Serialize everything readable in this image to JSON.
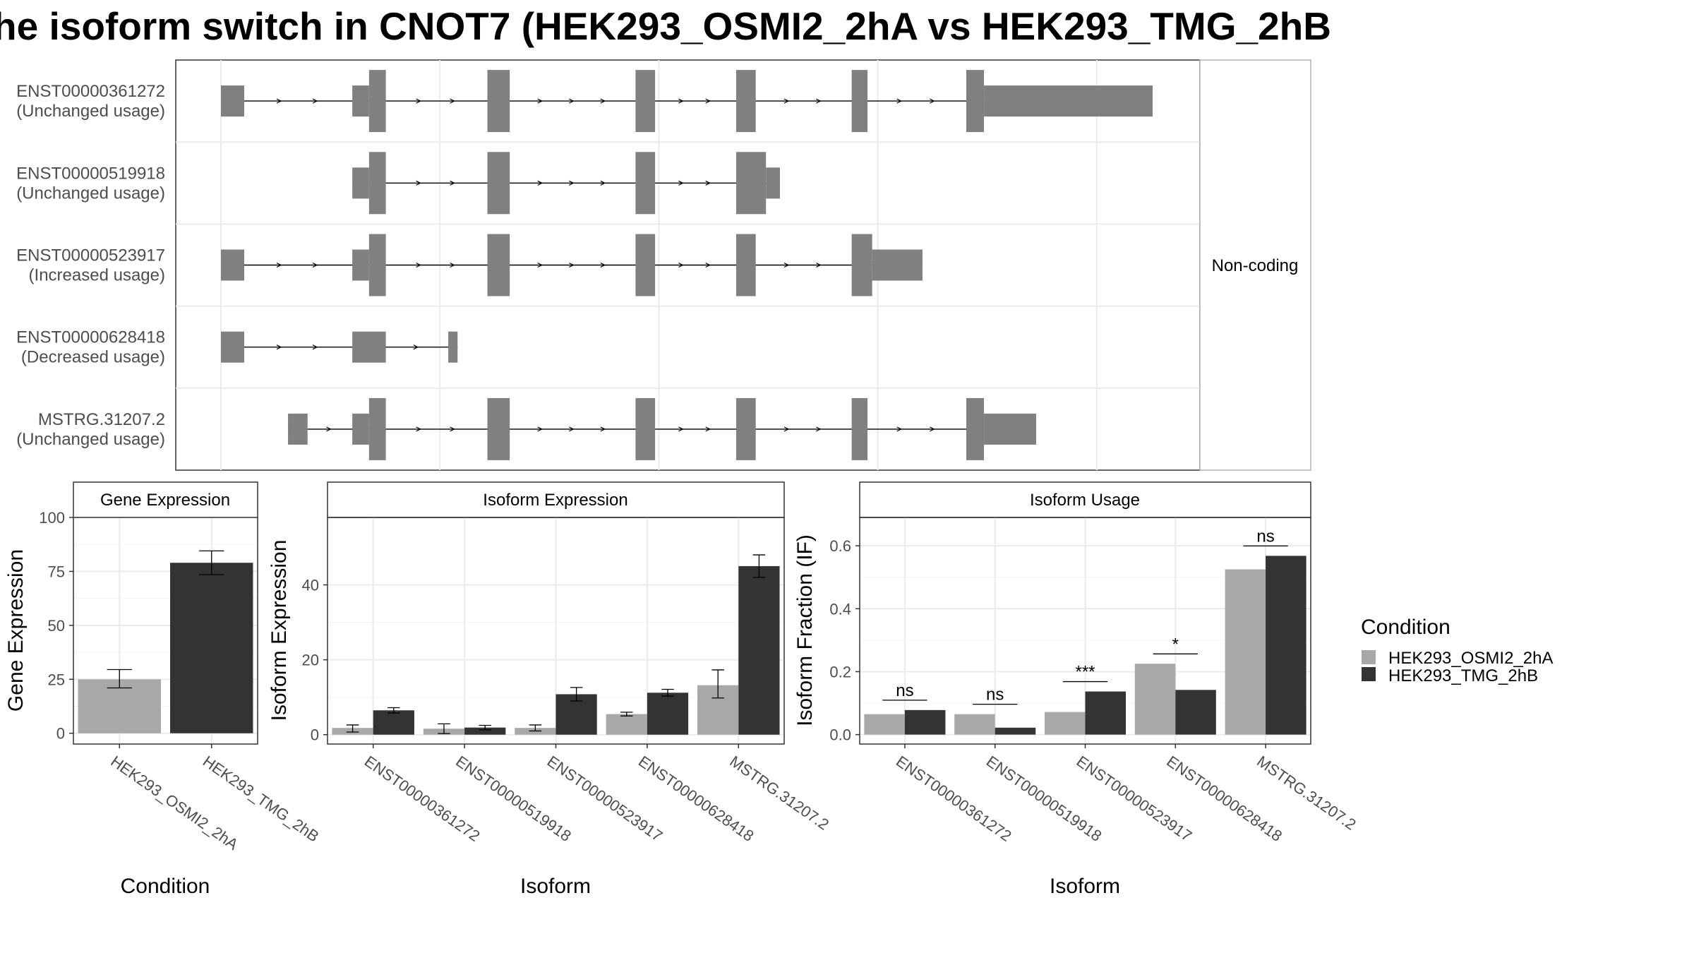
{
  "chart_data": [
    {
      "type": "gene_structure",
      "title": "he isoform switch in CNOT7 (HEK293_OSMI2_2hA vs HEK293_TMG_2hB",
      "strip_label": "Non-coding",
      "colors": {
        "exon": "#808080",
        "panel_border": "#333333",
        "grid": "#ebebeb"
      },
      "isoforms": [
        {
          "id": "ENST00000361272",
          "usage": "(Unchanged usage)",
          "exons": [
            {
              "start": 0.0,
              "end": 2.5,
              "height": "utr"
            },
            {
              "start": 14.1,
              "end": 15.9,
              "height": "utr"
            },
            {
              "start": 15.9,
              "end": 17.7,
              "height": "cds"
            },
            {
              "start": 28.6,
              "end": 31.0,
              "height": "cds"
            },
            {
              "start": 44.5,
              "end": 46.6,
              "height": "cds"
            },
            {
              "start": 55.3,
              "end": 57.4,
              "height": "cds"
            },
            {
              "start": 67.7,
              "end": 69.4,
              "height": "cds"
            },
            {
              "start": 80.0,
              "end": 81.9,
              "height": "cds"
            },
            {
              "start": 81.9,
              "end": 100.0,
              "height": "utr"
            }
          ]
        },
        {
          "id": "ENST00000519918",
          "usage": "(Unchanged usage)",
          "exons": [
            {
              "start": 14.1,
              "end": 15.9,
              "height": "utr"
            },
            {
              "start": 15.9,
              "end": 17.7,
              "height": "cds"
            },
            {
              "start": 28.6,
              "end": 31.0,
              "height": "cds"
            },
            {
              "start": 44.5,
              "end": 46.6,
              "height": "cds"
            },
            {
              "start": 55.3,
              "end": 58.5,
              "height": "cds"
            },
            {
              "start": 58.5,
              "end": 60.0,
              "height": "utr"
            }
          ]
        },
        {
          "id": "ENST00000523917",
          "usage": "(Increased usage)",
          "exons": [
            {
              "start": 0.0,
              "end": 2.5,
              "height": "utr"
            },
            {
              "start": 14.1,
              "end": 15.9,
              "height": "utr"
            },
            {
              "start": 15.9,
              "end": 17.7,
              "height": "cds"
            },
            {
              "start": 28.6,
              "end": 31.0,
              "height": "cds"
            },
            {
              "start": 44.5,
              "end": 46.6,
              "height": "cds"
            },
            {
              "start": 55.3,
              "end": 57.4,
              "height": "cds"
            },
            {
              "start": 67.7,
              "end": 69.9,
              "height": "cds"
            },
            {
              "start": 69.9,
              "end": 75.3,
              "height": "utr"
            }
          ]
        },
        {
          "id": "ENST00000628418",
          "usage": "(Decreased usage)",
          "exons": [
            {
              "start": 0.0,
              "end": 2.5,
              "height": "utr"
            },
            {
              "start": 14.1,
              "end": 17.7,
              "height": "utr"
            },
            {
              "start": 24.4,
              "end": 25.4,
              "height": "utr"
            }
          ]
        },
        {
          "id": "MSTRG.31207.2",
          "usage": "(Unchanged usage)",
          "exons": [
            {
              "start": 7.2,
              "end": 9.3,
              "height": "utr"
            },
            {
              "start": 14.1,
              "end": 15.9,
              "height": "utr"
            },
            {
              "start": 15.9,
              "end": 17.7,
              "height": "cds"
            },
            {
              "start": 28.6,
              "end": 31.0,
              "height": "cds"
            },
            {
              "start": 44.5,
              "end": 46.6,
              "height": "cds"
            },
            {
              "start": 55.3,
              "end": 57.4,
              "height": "cds"
            },
            {
              "start": 67.7,
              "end": 69.4,
              "height": "cds"
            },
            {
              "start": 80.0,
              "end": 81.9,
              "height": "cds"
            },
            {
              "start": 81.9,
              "end": 87.5,
              "height": "utr"
            }
          ]
        }
      ]
    },
    {
      "type": "bar",
      "panel_title": "Gene Expression",
      "xlabel": "Condition",
      "ylabel": "Gene Expression",
      "ylim": [
        -5,
        100
      ],
      "yticks": [
        0,
        25,
        50,
        75,
        100
      ],
      "categories": [
        "HEK293_OSMI2_2hA",
        "HEK293_TMG_2hB"
      ],
      "values": [
        25.0,
        79.0
      ],
      "error": [
        [
          21.0,
          29.5
        ],
        [
          73.5,
          84.5
        ]
      ],
      "colors": [
        "#a8a8a8",
        "#333333"
      ]
    },
    {
      "type": "bar",
      "panel_title": "Isoform Expression",
      "xlabel": "Isoform",
      "ylabel": "Isoform Expression",
      "ylim": [
        -2.5,
        58
      ],
      "yticks": [
        0,
        20,
        40
      ],
      "categories": [
        "ENST00000361272",
        "ENST00000519918",
        "ENST00000523917",
        "ENST00000628418",
        "MSTRG.31207.2"
      ],
      "series": [
        {
          "name": "HEK293_OSMI2_2hA",
          "values": [
            1.8,
            1.6,
            1.8,
            5.5,
            13.2
          ],
          "error": [
            [
              0.7,
              2.6
            ],
            [
              0.3,
              2.9
            ],
            [
              1.0,
              2.6
            ],
            [
              5.0,
              6.0
            ],
            [
              9.8,
              17.3
            ]
          ]
        },
        {
          "name": "HEK293_TMG_2hB",
          "values": [
            6.5,
            1.9,
            10.8,
            11.2,
            45.0
          ],
          "error": [
            [
              5.8,
              7.2
            ],
            [
              1.3,
              2.5
            ],
            [
              9.0,
              12.6
            ],
            [
              10.3,
              12.1
            ],
            [
              42.0,
              48.0
            ]
          ]
        }
      ],
      "colors": [
        "#a8a8a8",
        "#333333"
      ]
    },
    {
      "type": "bar",
      "panel_title": "Isoform Usage",
      "xlabel": "Isoform",
      "ylabel": "Isoform Fraction (IF)",
      "ylim": [
        -0.03,
        0.69
      ],
      "yticks": [
        "0.0",
        "0.2",
        "0.4",
        "0.6"
      ],
      "categories": [
        "ENST00000361272",
        "ENST00000519918",
        "ENST00000523917",
        "ENST00000628418",
        "MSTRG.31207.2"
      ],
      "series": [
        {
          "name": "HEK293_OSMI2_2hA",
          "values": [
            0.065,
            0.065,
            0.072,
            0.225,
            0.525
          ]
        },
        {
          "name": "HEK293_TMG_2hB",
          "values": [
            0.078,
            0.022,
            0.137,
            0.142,
            0.568
          ]
        }
      ],
      "significance": [
        "ns",
        "ns",
        "***",
        "*",
        "ns"
      ],
      "colors": [
        "#a8a8a8",
        "#333333"
      ]
    }
  ],
  "legend": {
    "title": "Condition",
    "items": [
      {
        "label": "HEK293_OSMI2_2hA",
        "color": "#a8a8a8"
      },
      {
        "label": "HEK293_TMG_2hB",
        "color": "#333333"
      }
    ]
  }
}
